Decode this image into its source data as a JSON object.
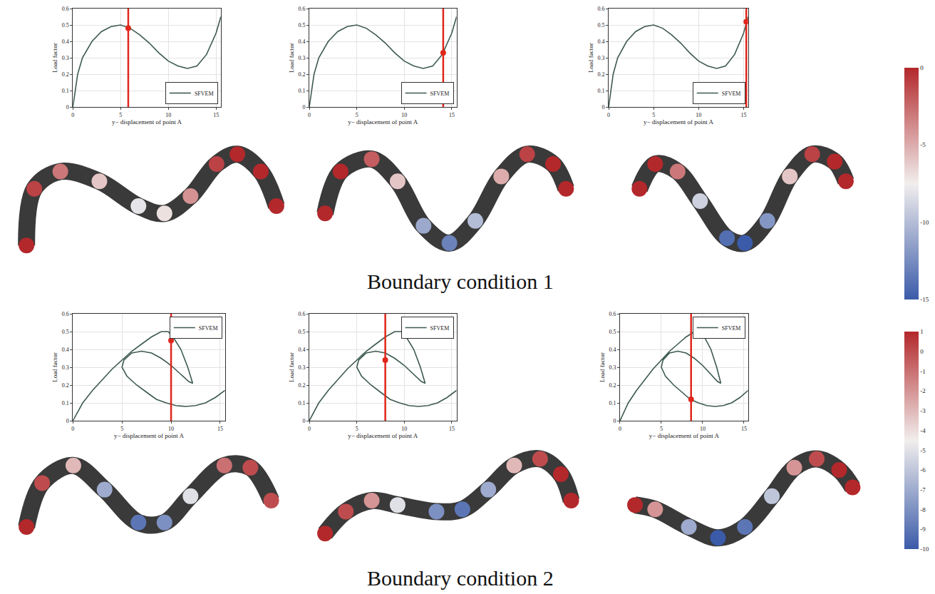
{
  "chart_data": {
    "rows": [
      {
        "label": "Boundary condition 1",
        "colorbar": {
          "range": [
            -15,
            0
          ],
          "ticks": [
            0,
            -5,
            -10,
            -15
          ]
        },
        "charts": [
          {
            "type": "line",
            "xlabel": "y− displacement of point A",
            "ylabel": "Load factor",
            "xlim": [
              0,
              15.5
            ],
            "ylim": [
              0,
              0.6
            ],
            "xticks": [
              0,
              5,
              10,
              15
            ],
            "yticks": [
              0,
              0.1,
              0.2,
              0.3,
              0.4,
              0.5,
              0.6
            ],
            "grid": true,
            "legend": "lower right",
            "x": [
              0,
              0.5,
              1,
              2,
              3,
              4,
              5,
              6,
              7,
              8,
              9,
              10,
              11,
              12,
              13,
              14,
              15,
              15.5
            ],
            "series": [
              {
                "name": "SFVEM",
                "color": "#3d5a4f",
                "values": [
                  0,
                  0.2,
                  0.3,
                  0.4,
                  0.46,
                  0.49,
                  0.5,
                  0.48,
                  0.44,
                  0.39,
                  0.33,
                  0.28,
                  0.25,
                  0.235,
                  0.25,
                  0.32,
                  0.45,
                  0.55
                ]
              }
            ],
            "highlight": {
              "x": 5.8,
              "y": 0.48,
              "color": "#e0261b"
            }
          },
          {
            "type": "line",
            "xlabel": "y− displacement of point A",
            "ylabel": "Load factor",
            "xlim": [
              0,
              15.5
            ],
            "ylim": [
              0,
              0.6
            ],
            "xticks": [
              0,
              5,
              10,
              15
            ],
            "yticks": [
              0,
              0.1,
              0.2,
              0.3,
              0.4,
              0.5,
              0.6
            ],
            "grid": true,
            "legend": "lower right",
            "x": [
              0,
              0.5,
              1,
              2,
              3,
              4,
              5,
              6,
              7,
              8,
              9,
              10,
              11,
              12,
              13,
              14,
              15,
              15.5
            ],
            "series": [
              {
                "name": "SFVEM",
                "color": "#3d5a4f",
                "values": [
                  0,
                  0.2,
                  0.3,
                  0.4,
                  0.46,
                  0.49,
                  0.5,
                  0.48,
                  0.44,
                  0.39,
                  0.33,
                  0.28,
                  0.25,
                  0.235,
                  0.25,
                  0.32,
                  0.45,
                  0.55
                ]
              }
            ],
            "highlight": {
              "x": 14.1,
              "y": 0.33,
              "color": "#e0261b"
            }
          },
          {
            "type": "line",
            "xlabel": "y− displacement of point A",
            "ylabel": "Load factor",
            "xlim": [
              0,
              15.5
            ],
            "ylim": [
              0,
              0.6
            ],
            "xticks": [
              0,
              5,
              10,
              15
            ],
            "yticks": [
              0,
              0.1,
              0.2,
              0.3,
              0.4,
              0.5,
              0.6
            ],
            "grid": true,
            "legend": "lower right",
            "x": [
              0,
              0.5,
              1,
              2,
              3,
              4,
              5,
              6,
              7,
              8,
              9,
              10,
              11,
              12,
              13,
              14,
              15,
              15.5
            ],
            "series": [
              {
                "name": "SFVEM",
                "color": "#3d5a4f",
                "values": [
                  0,
                  0.2,
                  0.3,
                  0.4,
                  0.46,
                  0.49,
                  0.5,
                  0.48,
                  0.44,
                  0.39,
                  0.33,
                  0.28,
                  0.25,
                  0.235,
                  0.25,
                  0.32,
                  0.45,
                  0.55
                ]
              }
            ],
            "highlight": {
              "x": 15.3,
              "y": 0.52,
              "color": "#e0261b"
            }
          }
        ],
        "beams": [
          {
            "type": "scatter",
            "tick_labels": false,
            "xlim": [
              -0.6,
              10.6
            ],
            "ylim": [
              -0.6,
              4.6
            ],
            "x": [
              0.2,
              0.5,
              1.5,
              3,
              4.5,
              5.5,
              6.5,
              7.5,
              8.3,
              9.2,
              9.8
            ],
            "y": [
              0.2,
              2.5,
              3.2,
              2.8,
              1.8,
              1.5,
              2.2,
              3.5,
              3.9,
              3.2,
              1.8
            ],
            "values": [
              0,
              -1,
              -3,
              -6,
              -8,
              -7,
              -4,
              -1,
              0,
              0,
              0
            ]
          },
          {
            "type": "scatter",
            "tick_labels": false,
            "xlim": [
              -0.6,
              10.6
            ],
            "ylim": [
              -0.6,
              4.6
            ],
            "x": [
              0.2,
              0.8,
              2,
              3,
              4,
              5,
              6,
              7,
              8,
              9,
              9.5
            ],
            "y": [
              1.5,
              3.2,
              3.7,
              2.8,
              1.0,
              0.3,
              1.2,
              3,
              3.9,
              3.5,
              2.5
            ],
            "values": [
              0,
              0,
              -2,
              -6,
              -11,
              -13,
              -10,
              -5,
              -1,
              0,
              0
            ]
          },
          {
            "type": "scatter",
            "tick_labels": false,
            "xlim": [
              -0.6,
              10.6
            ],
            "ylim": [
              -0.6,
              4.6
            ],
            "x": [
              0.3,
              1,
              2,
              3,
              4.2,
              5,
              6,
              7,
              8,
              9,
              9.5
            ],
            "y": [
              2.5,
              3.5,
              3.2,
              2,
              0.5,
              0.3,
              1.2,
              3,
              3.9,
              3.6,
              2.8
            ],
            "values": [
              0,
              0,
              -3,
              -9,
              -14,
              -15,
              -12,
              -6,
              -1,
              0,
              0
            ]
          }
        ]
      },
      {
        "label": "Boundary condition 2",
        "colorbar": {
          "range": [
            -10,
            1
          ],
          "ticks": [
            1,
            0,
            -1,
            -2,
            -3,
            -4,
            -5,
            -6,
            -7,
            -8,
            -9,
            -10
          ]
        },
        "charts": [
          {
            "type": "line",
            "xlabel": "y− displacement of point A",
            "ylabel": "Load factor",
            "xlim": [
              0,
              15.5
            ],
            "ylim": [
              0,
              0.6
            ],
            "xticks": [
              0,
              5,
              10,
              15
            ],
            "yticks": [
              0,
              0.1,
              0.2,
              0.3,
              0.4,
              0.5,
              0.6
            ],
            "grid": true,
            "legend": "upper right",
            "x": [
              0,
              1,
              2,
              3,
              4,
              5,
              6,
              7,
              8,
              9,
              9.7,
              10.2,
              11,
              11.7,
              12.2,
              11.8,
              11,
              10,
              9,
              8,
              7,
              6,
              5.2,
              5,
              5.5,
              6.5,
              7.5,
              8.5,
              9.5,
              10.5,
              11.5,
              12.5,
              13.5,
              14.5,
              15.5
            ],
            "series": [
              {
                "name": "SFVEM",
                "color": "#3d5a4f",
                "values": [
                  0,
                  0.1,
                  0.17,
                  0.23,
                  0.29,
                  0.34,
                  0.39,
                  0.43,
                  0.47,
                  0.5,
                  0.5,
                  0.47,
                  0.4,
                  0.3,
                  0.21,
                  0.22,
                  0.26,
                  0.31,
                  0.35,
                  0.38,
                  0.39,
                  0.38,
                  0.34,
                  0.3,
                  0.25,
                  0.2,
                  0.16,
                  0.12,
                  0.1,
                  0.085,
                  0.08,
                  0.085,
                  0.1,
                  0.13,
                  0.17
                ]
              }
            ],
            "highlight": {
              "x": 10,
              "y": 0.45,
              "color": "#e0261b"
            }
          },
          {
            "type": "line",
            "xlabel": "y− displacement of point A",
            "ylabel": "Load factor",
            "xlim": [
              0,
              15.5
            ],
            "ylim": [
              0,
              0.6
            ],
            "xticks": [
              0,
              5,
              10,
              15
            ],
            "yticks": [
              0,
              0.1,
              0.2,
              0.3,
              0.4,
              0.5,
              0.6
            ],
            "grid": true,
            "legend": "upper right",
            "x": [
              0,
              1,
              2,
              3,
              4,
              5,
              6,
              7,
              8,
              9,
              9.7,
              10.2,
              11,
              11.7,
              12.2,
              11.8,
              11,
              10,
              9,
              8,
              7,
              6,
              5.2,
              5,
              5.5,
              6.5,
              7.5,
              8.5,
              9.5,
              10.5,
              11.5,
              12.5,
              13.5,
              14.5,
              15.5
            ],
            "series": [
              {
                "name": "SFVEM",
                "color": "#3d5a4f",
                "values": [
                  0,
                  0.1,
                  0.17,
                  0.23,
                  0.29,
                  0.34,
                  0.39,
                  0.43,
                  0.47,
                  0.5,
                  0.5,
                  0.47,
                  0.4,
                  0.3,
                  0.21,
                  0.22,
                  0.26,
                  0.31,
                  0.35,
                  0.38,
                  0.39,
                  0.38,
                  0.34,
                  0.3,
                  0.25,
                  0.2,
                  0.16,
                  0.12,
                  0.1,
                  0.085,
                  0.08,
                  0.085,
                  0.1,
                  0.13,
                  0.17
                ]
              }
            ],
            "highlight": {
              "x": 8,
              "y": 0.34,
              "color": "#e0261b"
            }
          },
          {
            "type": "line",
            "xlabel": "y− displacement of point A",
            "ylabel": "Load factor",
            "xlim": [
              0,
              15.5
            ],
            "ylim": [
              0,
              0.6
            ],
            "xticks": [
              0,
              5,
              10,
              15
            ],
            "yticks": [
              0,
              0.1,
              0.2,
              0.3,
              0.4,
              0.5,
              0.6
            ],
            "grid": true,
            "legend": "upper right",
            "x": [
              0,
              1,
              2,
              3,
              4,
              5,
              6,
              7,
              8,
              9,
              9.7,
              10.2,
              11,
              11.7,
              12.2,
              11.8,
              11,
              10,
              9,
              8,
              7,
              6,
              5.2,
              5,
              5.5,
              6.5,
              7.5,
              8.5,
              9.5,
              10.5,
              11.5,
              12.5,
              13.5,
              14.5,
              15.5
            ],
            "series": [
              {
                "name": "SFVEM",
                "color": "#3d5a4f",
                "values": [
                  0,
                  0.1,
                  0.17,
                  0.23,
                  0.29,
                  0.34,
                  0.39,
                  0.43,
                  0.47,
                  0.5,
                  0.5,
                  0.47,
                  0.4,
                  0.3,
                  0.21,
                  0.22,
                  0.26,
                  0.31,
                  0.35,
                  0.38,
                  0.39,
                  0.38,
                  0.34,
                  0.3,
                  0.25,
                  0.2,
                  0.16,
                  0.12,
                  0.1,
                  0.085,
                  0.08,
                  0.085,
                  0.1,
                  0.13,
                  0.17
                ]
              }
            ],
            "highlight": {
              "x": 8.6,
              "y": 0.12,
              "color": "#e0261b"
            }
          }
        ],
        "beams": [
          {
            "type": "scatter",
            "tick_labels": false,
            "xlim": [
              -0.6,
              10.6
            ],
            "ylim": [
              -0.6,
              4.6
            ],
            "x": [
              0.2,
              0.8,
              2,
              3.2,
              4.5,
              5.5,
              6.5,
              7.8,
              8.8,
              9.6
            ],
            "y": [
              0.8,
              2.8,
              3.6,
              2.5,
              1.0,
              1.0,
              2.2,
              3.6,
              3.5,
              2.0
            ],
            "values": [
              1,
              0,
              -3,
              -7,
              -9,
              -8,
              -5,
              -1,
              0,
              0
            ]
          },
          {
            "type": "scatter",
            "tick_labels": false,
            "xlim": [
              -0.6,
              10.6
            ],
            "ylim": [
              -0.6,
              4.6
            ],
            "x": [
              0.2,
              1,
              2,
              3,
              4.5,
              5.5,
              6.5,
              7.5,
              8.5,
              9.3,
              9.7
            ],
            "y": [
              0.5,
              1.5,
              2.0,
              1.8,
              1.5,
              1.6,
              2.5,
              3.6,
              3.9,
              3.2,
              2.0
            ],
            "values": [
              1,
              0,
              -2,
              -5,
              -8,
              -9,
              -7,
              -3,
              0,
              1,
              1
            ]
          },
          {
            "type": "scatter",
            "tick_labels": false,
            "xlim": [
              -0.6,
              10.6
            ],
            "ylim": [
              -0.6,
              4.6
            ],
            "x": [
              0.1,
              1,
              2.5,
              3.8,
              5,
              6.2,
              7.2,
              8.2,
              9.2,
              9.8
            ],
            "y": [
              1.8,
              1.6,
              0.8,
              0.3,
              0.8,
              2.2,
              3.5,
              3.9,
              3.4,
              2.6
            ],
            "values": [
              1,
              -2,
              -7,
              -10,
              -9,
              -6,
              -2,
              0,
              1,
              1
            ]
          }
        ]
      }
    ]
  }
}
